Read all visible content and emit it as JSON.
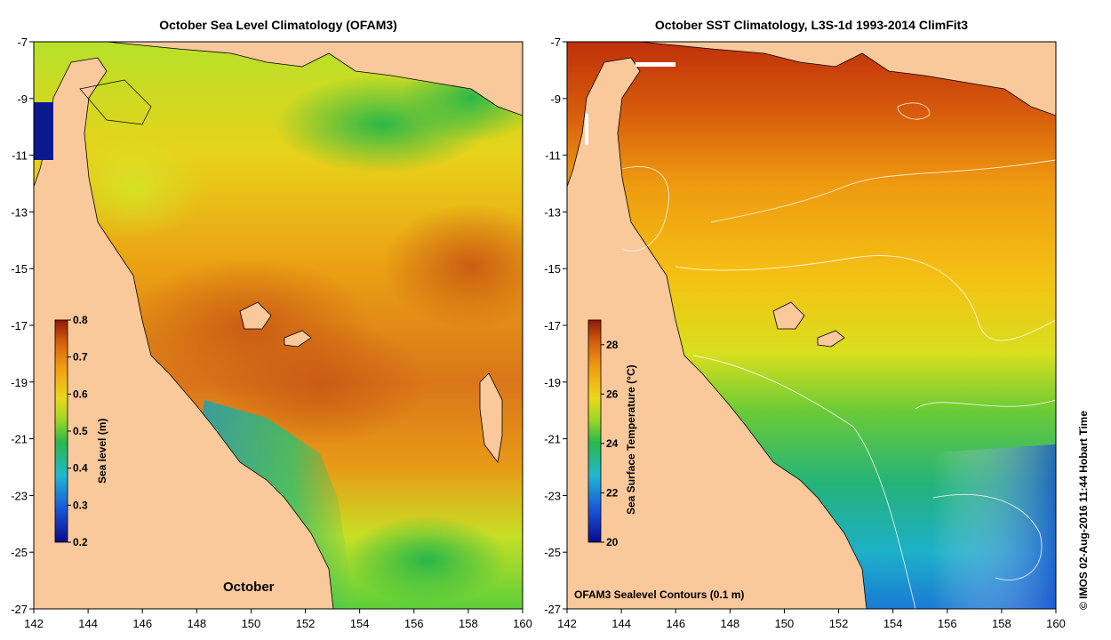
{
  "panels": [
    {
      "id": "left",
      "title": "October Sea Level Climatology (OFAM3)",
      "annotation": "October",
      "colorbar": {
        "label": "Sea level (m)",
        "min": 0.2,
        "max": 0.8,
        "ticks": [
          "0.8",
          "0.7",
          "0.6",
          "0.5",
          "0.4",
          "0.3",
          "0.2"
        ]
      }
    },
    {
      "id": "right",
      "title": "October SST Climatology, L3S-1d 1993-2014 ClimFit3",
      "annotation": "OFAM3 Sealevel Contours (0.1 m)",
      "colorbar": {
        "label": "Sea Surface Temperature (°C)",
        "min": 20,
        "max": 29,
        "ticks": [
          "28",
          "26",
          "24",
          "22",
          "20"
        ]
      }
    }
  ],
  "axes": {
    "lon_ticks": [
      "142",
      "144",
      "146",
      "148",
      "150",
      "152",
      "154",
      "156",
      "158",
      "160"
    ],
    "lat_ticks": [
      "-7",
      "-9",
      "-11",
      "-13",
      "-15",
      "-17",
      "-19",
      "-21",
      "-23",
      "-25",
      "-27"
    ],
    "lon_range": [
      142,
      160
    ],
    "lat_range": [
      -27,
      -7
    ]
  },
  "credit": "© IMOS 02-Aug-2016 11:44 Hobart Time",
  "colors": {
    "land": "#f9c89b",
    "sea_high": "#d4620f",
    "sea_mid": "#f2b012",
    "sea_low": "#33b84a",
    "sea_lowest": "#1f5fc8"
  }
}
